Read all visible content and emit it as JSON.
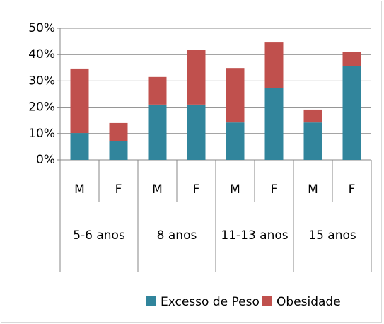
{
  "chart_data": {
    "type": "stacked-bar",
    "categories": [
      "M",
      "F",
      "M",
      "F",
      "M",
      "F",
      "M",
      "F"
    ],
    "groups": [
      "5-6 anos",
      "8 anos",
      "11-13 anos",
      "15 anos"
    ],
    "series": [
      {
        "name": "Excesso de Peso",
        "color": "#31859c",
        "values": [
          10.2,
          7.0,
          21.0,
          21.0,
          14.2,
          27.4,
          14.2,
          35.5
        ]
      },
      {
        "name": "Obesidade",
        "color": "#c0504d",
        "values": [
          24.5,
          7.0,
          10.5,
          20.9,
          20.7,
          17.2,
          4.9,
          5.6
        ]
      }
    ],
    "ylim": [
      0,
      50
    ],
    "yticks": [
      {
        "value": 0,
        "label": "0%"
      },
      {
        "value": 10,
        "label": "10%"
      },
      {
        "value": 20,
        "label": "20%"
      },
      {
        "value": 30,
        "label": "30%"
      },
      {
        "value": 40,
        "label": "40%"
      },
      {
        "value": 50,
        "label": "50%"
      }
    ],
    "grid": true,
    "legend": "bottom"
  }
}
